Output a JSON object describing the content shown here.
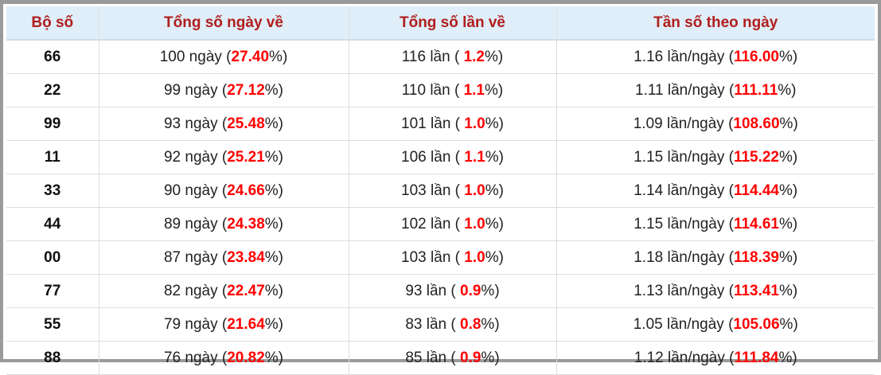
{
  "table": {
    "headers": [
      "Bộ số",
      "Tổng số ngày về",
      "Tổng số lần về",
      "Tần số theo ngày"
    ],
    "rows": [
      {
        "code": "66",
        "days": [
          "100 ngày (",
          "27.40",
          "%)"
        ],
        "times": [
          "116 lần ( ",
          "1.2",
          "%)"
        ],
        "freq": [
          "1.16 lần/ngày (",
          "116.00",
          "%)"
        ]
      },
      {
        "code": "22",
        "days": [
          "99 ngày (",
          "27.12",
          "%)"
        ],
        "times": [
          "110 lần ( ",
          "1.1",
          "%)"
        ],
        "freq": [
          "1.11 lần/ngày (",
          "111.11",
          "%)"
        ]
      },
      {
        "code": "99",
        "days": [
          "93 ngày (",
          "25.48",
          "%)"
        ],
        "times": [
          "101 lần ( ",
          "1.0",
          "%)"
        ],
        "freq": [
          "1.09 lần/ngày (",
          "108.60",
          "%)"
        ]
      },
      {
        "code": "11",
        "days": [
          "92 ngày (",
          "25.21",
          "%)"
        ],
        "times": [
          "106 lần ( ",
          "1.1",
          "%)"
        ],
        "freq": [
          "1.15 lần/ngày (",
          "115.22",
          "%)"
        ]
      },
      {
        "code": "33",
        "days": [
          "90 ngày (",
          "24.66",
          "%)"
        ],
        "times": [
          "103 lần ( ",
          "1.0",
          "%)"
        ],
        "freq": [
          "1.14 lần/ngày (",
          "114.44",
          "%)"
        ]
      },
      {
        "code": "44",
        "days": [
          "89 ngày (",
          "24.38",
          "%)"
        ],
        "times": [
          "102 lần ( ",
          "1.0",
          "%)"
        ],
        "freq": [
          "1.15 lần/ngày (",
          "114.61",
          "%)"
        ]
      },
      {
        "code": "00",
        "days": [
          "87 ngày (",
          "23.84",
          "%)"
        ],
        "times": [
          "103 lần ( ",
          "1.0",
          "%)"
        ],
        "freq": [
          "1.18 lần/ngày (",
          "118.39",
          "%)"
        ]
      },
      {
        "code": "77",
        "days": [
          "82 ngày (",
          "22.47",
          "%)"
        ],
        "times": [
          "93 lần ( ",
          "0.9",
          "%)"
        ],
        "freq": [
          "1.13 lần/ngày (",
          "113.41",
          "%)"
        ]
      },
      {
        "code": "55",
        "days": [
          "79 ngày (",
          "21.64",
          "%)"
        ],
        "times": [
          "83 lần ( ",
          "0.8",
          "%)"
        ],
        "freq": [
          "1.05 lần/ngày (",
          "105.06",
          "%)"
        ]
      },
      {
        "code": "88",
        "days": [
          "76 ngày (",
          "20.82",
          "%)"
        ],
        "times": [
          "85 lần ( ",
          "0.9",
          "%)"
        ],
        "freq": [
          "1.12 lần/ngày (",
          "111.84",
          "%)"
        ]
      }
    ]
  }
}
